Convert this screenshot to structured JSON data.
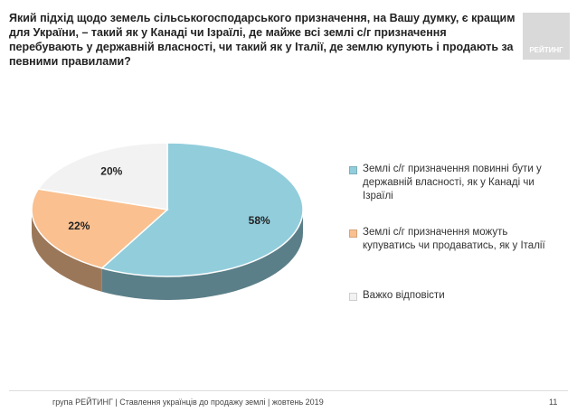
{
  "chart_data": {
    "type": "pie",
    "title": "Який підхід щодо земель сільськогосподарського призначення, на Вашу думку, є кращим для України, – такий як у Канаді чи Ізраїлі, де майже всі землі с/г призначення перебувають у державній власності, чи такий як у Італії, де землю купують і продають за певними правилами?",
    "categories": [
      "Землі с/г призначення повинні бути у державній власності, як у Канаді чи Ізраїлі",
      "Землі с/г призначення можуть купуватись чи продаватись, як у Італії",
      "Важко відповісти"
    ],
    "values": [
      58,
      22,
      20
    ],
    "value_labels": [
      "58%",
      "22%",
      "20%"
    ],
    "colors": [
      "#92cddc",
      "#fac090",
      "#f2f2f2"
    ]
  },
  "logo": "РЕЙТИНГ",
  "footer": "група РЕЙТИНГ | Ставлення українців до продажу землі | жовтень 2019",
  "page_number": "11"
}
